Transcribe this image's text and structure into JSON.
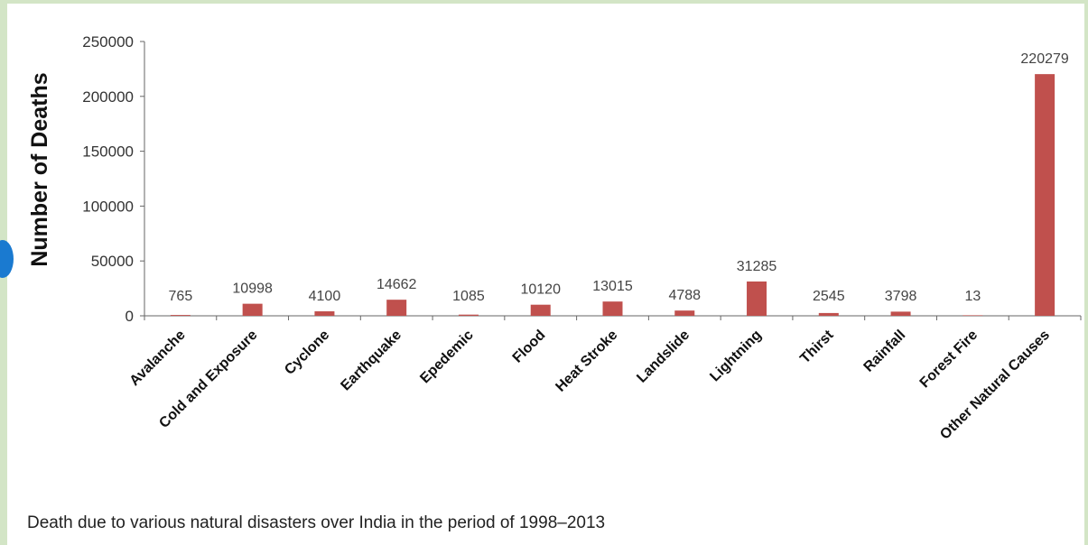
{
  "caption": "Death due to various natural disasters over India in the period of 1998–2013",
  "chart_data": {
    "type": "bar",
    "ylabel": "Number of Deaths",
    "ylim": [
      0,
      250000
    ],
    "yticks": [
      0,
      50000,
      100000,
      150000,
      200000,
      250000
    ],
    "grid": false,
    "categories": [
      "Avalanche",
      "Cold and Exposure",
      "Cyclone",
      "Earthquake",
      "Epedemic",
      "Flood",
      "Heat Stroke",
      "Landslide",
      "Lightning",
      "Thirst",
      "Rainfall",
      "Forest Fire",
      "Other Natural Causes"
    ],
    "values": [
      765,
      10998,
      4100,
      14662,
      1085,
      10120,
      13015,
      4788,
      31285,
      2545,
      3798,
      13,
      220279
    ],
    "bar_color": "#c0504d"
  }
}
